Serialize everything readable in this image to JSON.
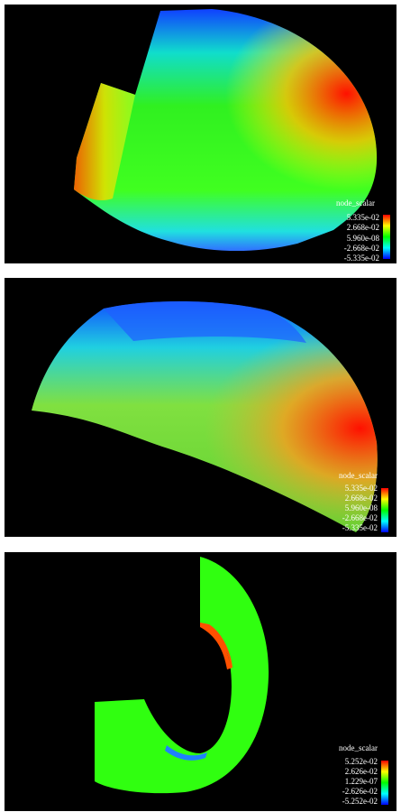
{
  "panels": [
    {
      "legend": {
        "title": "node_scalar",
        "labels": [
          "5.335e-02",
          "2.668e-02",
          "5.960e-08",
          "-2.668e-02",
          "-5.335e-02"
        ]
      }
    },
    {
      "legend": {
        "title": "node_scalar",
        "labels": [
          "5.335e-02",
          "2.668e-02",
          "5.960e-08",
          "-2.668e-02",
          "-5.335e-02"
        ]
      }
    },
    {
      "legend": {
        "title": "node_scalar",
        "labels": [
          "5.252e-02",
          "2.626e-02",
          "1.229e-07",
          "-2.626e-02",
          "-5.252e-02"
        ]
      }
    }
  ]
}
